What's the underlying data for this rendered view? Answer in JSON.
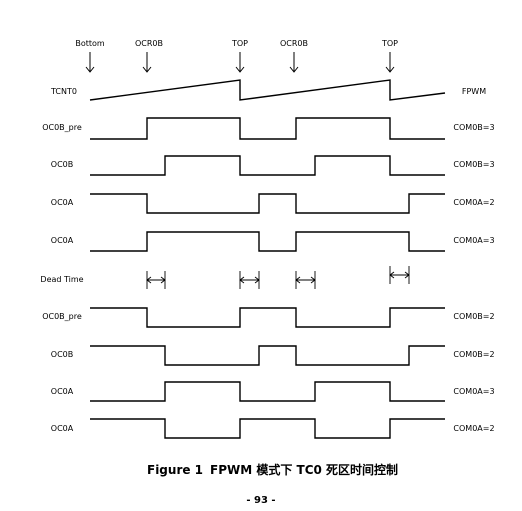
{
  "markers": [
    "Bottom",
    "OCR0B",
    "TOP",
    "OCR0B",
    "TOP"
  ],
  "tcnt": {
    "left_label": "TCNT0",
    "right_label": "FPWM"
  },
  "signals": [
    {
      "name": "OC0B_pre",
      "mode": "COM0B=3",
      "levels": [
        0,
        1,
        0,
        1,
        0
      ]
    },
    {
      "name": "OC0B",
      "mode": "COM0B=3",
      "levels": [
        0,
        1,
        0,
        1,
        0
      ]
    },
    {
      "name": "OC0A",
      "mode": "COM0A=2",
      "levels": [
        1,
        0,
        1,
        0,
        1
      ]
    },
    {
      "name": "OC0A",
      "mode": "COM0A=3",
      "levels": [
        0,
        1,
        0,
        1,
        0
      ]
    },
    {
      "name": "Dead Time",
      "mode": "",
      "levels": []
    },
    {
      "name": "OC0B_pre",
      "mode": "COM0B=2",
      "levels": [
        1,
        0,
        1,
        0,
        1
      ]
    },
    {
      "name": "OC0B",
      "mode": "COM0B=2",
      "levels": [
        1,
        0,
        1,
        0,
        1
      ]
    },
    {
      "name": "OC0A",
      "mode": "COM0A=3",
      "levels": [
        0,
        1,
        0,
        1,
        0
      ]
    },
    {
      "name": "OC0A",
      "mode": "COM0A=2",
      "levels": [
        1,
        0,
        1,
        0,
        1
      ]
    }
  ],
  "caption": {
    "figure": "Figure 1",
    "text": "FPWM 模式下 TC0 死区时间控制"
  },
  "page_number": "- 93 -"
}
